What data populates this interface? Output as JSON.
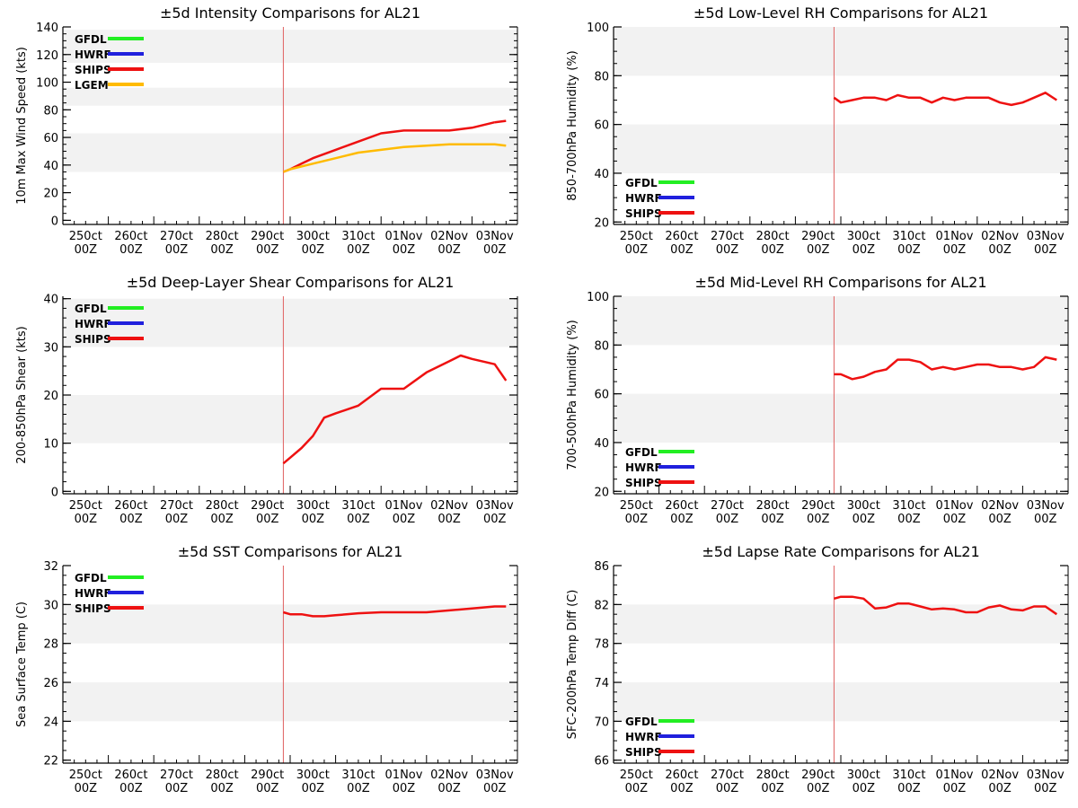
{
  "colors": {
    "band": "#f2f2f2",
    "marker_line": "#e06060",
    "GFDL": "#22ee22",
    "HWRF": "#2020dd",
    "SHIPS": "#ee1111",
    "LGEM": "#ffbb00"
  },
  "x_tick_labels": [
    [
      "250ct",
      "00Z"
    ],
    [
      "260ct",
      "00Z"
    ],
    [
      "270ct",
      "00Z"
    ],
    [
      "280ct",
      "00Z"
    ],
    [
      "290ct",
      "00Z"
    ],
    [
      "300ct",
      "00Z"
    ],
    [
      "310ct",
      "00Z"
    ],
    [
      "01Nov",
      "00Z"
    ],
    [
      "02Nov",
      "00Z"
    ],
    [
      "03Nov",
      "00Z"
    ]
  ],
  "chart_data": [
    {
      "id": "intensity",
      "type": "line",
      "title": "±5d Intensity Comparisons for AL21",
      "ylabel": "10m Max Wind Speed (kts)",
      "xlabel": "",
      "ylim": [
        -3,
        140
      ],
      "yticks": [
        0,
        20,
        40,
        60,
        80,
        100,
        120,
        140
      ],
      "minor_step": 5,
      "bands": [
        [
          35,
          63
        ],
        [
          83,
          96
        ],
        [
          114,
          138
        ]
      ],
      "legend_position": "top-left",
      "legend": [
        "GFDL",
        "HWRF",
        "SHIPS",
        "LGEM"
      ],
      "marker_x": 4.85,
      "series": [
        {
          "name": "SHIPS",
          "x": [
            4.85,
            5.0,
            5.25,
            5.5,
            6.0,
            6.5,
            7.0,
            7.5,
            8.0,
            8.5,
            9.0,
            9.5
          ],
          "values": [
            35,
            37,
            41,
            45,
            51,
            57,
            63,
            65,
            65,
            65,
            67,
            71
          ]
        },
        {
          "name": "SHIPS",
          "x": [
            9.5,
            9.75
          ],
          "values": [
            71,
            72
          ]
        },
        {
          "name": "LGEM",
          "x": [
            4.85,
            5.0,
            5.5,
            6.0,
            6.5,
            7.0,
            7.5,
            8.0,
            8.5,
            9.0,
            9.5,
            9.75
          ],
          "values": [
            35,
            37,
            41,
            45,
            49,
            51,
            53,
            54,
            55,
            55,
            55,
            54
          ]
        }
      ]
    },
    {
      "id": "low_rh",
      "type": "line",
      "title": "±5d Low-Level RH Comparisons for AL21",
      "ylabel": "850-700hPa Humidity (%)",
      "xlabel": "",
      "ylim": [
        19,
        100
      ],
      "yticks": [
        20,
        40,
        60,
        80,
        100
      ],
      "minor_step": 5,
      "bands": [
        [
          40,
          60
        ],
        [
          80,
          100
        ]
      ],
      "legend_position": "bottom-left",
      "legend": [
        "GFDL",
        "HWRF",
        "SHIPS"
      ],
      "marker_x": 4.85,
      "series": [
        {
          "name": "SHIPS",
          "x": [
            4.85,
            5.0,
            5.25,
            5.5,
            5.75,
            6.0,
            6.25,
            6.5,
            6.75,
            7.0,
            7.25,
            7.5,
            7.75,
            8.0,
            8.25,
            8.5,
            8.75,
            9.0,
            9.25,
            9.5,
            9.75
          ],
          "values": [
            71,
            69,
            70,
            71,
            71,
            70,
            72,
            71,
            71,
            69,
            71,
            70,
            71,
            71,
            71,
            69,
            68,
            69,
            71,
            73,
            70
          ]
        }
      ]
    },
    {
      "id": "shear",
      "type": "line",
      "title": "±5d Deep-Layer Shear Comparisons for AL21",
      "ylabel": "200-850hPa Shear (kts)",
      "xlabel": "",
      "ylim": [
        -0.5,
        40.5
      ],
      "yticks": [
        0,
        10,
        20,
        30,
        40
      ],
      "minor_step": 2,
      "bands": [
        [
          10,
          20
        ],
        [
          30,
          40
        ]
      ],
      "legend_position": "top-left",
      "legend": [
        "GFDL",
        "HWRF",
        "SHIPS"
      ],
      "marker_x": 4.85,
      "series": [
        {
          "name": "SHIPS",
          "x": [
            4.85,
            5.0,
            5.25,
            5.5,
            5.75,
            6.0,
            6.5,
            7.0,
            7.5,
            8.0,
            8.5,
            8.75,
            9.0,
            9.5,
            9.75
          ],
          "values": [
            5.8,
            7.0,
            9.0,
            11.5,
            15.3,
            16.2,
            17.8,
            21.3,
            21.3,
            24.7,
            27.0,
            28.2,
            27.5,
            26.4,
            23.0
          ]
        }
      ]
    },
    {
      "id": "mid_rh",
      "type": "line",
      "title": "±5d Mid-Level RH Comparisons for AL21",
      "ylabel": "700-500hPa Humidity (%)",
      "xlabel": "",
      "ylim": [
        19,
        100
      ],
      "yticks": [
        20,
        40,
        60,
        80,
        100
      ],
      "minor_step": 5,
      "bands": [
        [
          40,
          60
        ],
        [
          80,
          100
        ]
      ],
      "legend_position": "bottom-left",
      "legend": [
        "GFDL",
        "HWRF",
        "SHIPS"
      ],
      "marker_x": 4.85,
      "series": [
        {
          "name": "SHIPS",
          "x": [
            4.85,
            5.0,
            5.25,
            5.5,
            5.75,
            6.0,
            6.25,
            6.5,
            6.75,
            7.0,
            7.25,
            7.5,
            7.75,
            8.0,
            8.25,
            8.5,
            8.75,
            9.0,
            9.25,
            9.5,
            9.75
          ],
          "values": [
            68,
            68,
            66,
            67,
            69,
            70,
            74,
            74,
            73,
            70,
            71,
            70,
            71,
            72,
            72,
            71,
            71,
            70,
            71,
            75,
            74
          ]
        }
      ]
    },
    {
      "id": "sst",
      "type": "line",
      "title": "±5d SST Comparisons for AL21",
      "ylabel": "Sea Surface Temp (C)",
      "xlabel": "",
      "ylim": [
        21.85,
        32
      ],
      "yticks": [
        22,
        24,
        26,
        28,
        30,
        32
      ],
      "minor_step": 0.5,
      "bands": [
        [
          24,
          26
        ],
        [
          28,
          30
        ]
      ],
      "legend_position": "top-left",
      "legend": [
        "GFDL",
        "HWRF",
        "SHIPS"
      ],
      "marker_x": 4.85,
      "series": [
        {
          "name": "SHIPS",
          "x": [
            4.85,
            5.0,
            5.25,
            5.5,
            5.75,
            6.0,
            6.5,
            7.0,
            7.5,
            8.0,
            8.5,
            9.0,
            9.5,
            9.75
          ],
          "values": [
            29.6,
            29.5,
            29.5,
            29.4,
            29.4,
            29.45,
            29.55,
            29.6,
            29.6,
            29.6,
            29.7,
            29.8,
            29.9,
            29.9
          ]
        }
      ]
    },
    {
      "id": "lapse",
      "type": "line",
      "title": "±5d Lapse Rate Comparisons for AL21",
      "ylabel": "SFC-200hPa Temp Diff (C)",
      "xlabel": "",
      "ylim": [
        65.7,
        86
      ],
      "yticks": [
        66,
        70,
        74,
        78,
        82,
        86
      ],
      "minor_step": 1,
      "bands": [
        [
          70,
          74
        ],
        [
          78,
          82
        ]
      ],
      "legend_position": "bottom-left",
      "legend": [
        "GFDL",
        "HWRF",
        "SHIPS"
      ],
      "marker_x": 4.85,
      "series": [
        {
          "name": "SHIPS",
          "x": [
            4.85,
            5.0,
            5.25,
            5.5,
            5.75,
            6.0,
            6.25,
            6.5,
            6.75,
            7.0,
            7.25,
            7.5,
            7.75,
            8.0,
            8.25,
            8.5,
            8.75,
            9.0,
            9.25,
            9.5,
            9.75
          ],
          "values": [
            82.6,
            82.8,
            82.8,
            82.6,
            81.6,
            81.7,
            82.1,
            82.1,
            81.8,
            81.5,
            81.6,
            81.5,
            81.2,
            81.2,
            81.7,
            81.9,
            81.5,
            81.4,
            81.8,
            81.8,
            81.0
          ]
        }
      ]
    }
  ]
}
